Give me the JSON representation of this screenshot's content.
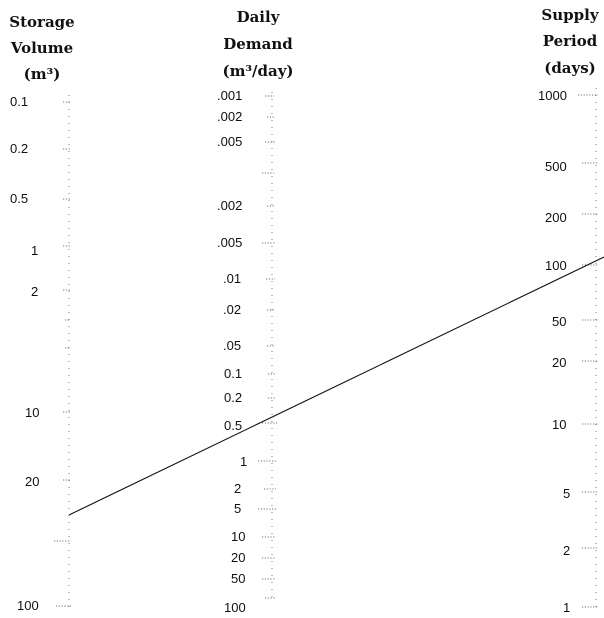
{
  "scales": {
    "storage": {
      "title": [
        "Storage",
        "Volume",
        "(m³)"
      ],
      "labels": [
        "0.1",
        "0.2",
        "0.5",
        "1",
        "2",
        "10",
        "20",
        "100"
      ]
    },
    "demand": {
      "title": [
        "Daily",
        "Demand",
        "(m³/day)"
      ],
      "labels": [
        ".001",
        ".002",
        ".005",
        ".002",
        ".005",
        ".01",
        ".02",
        ".05",
        "0.1",
        "0.2",
        "0.5",
        "1",
        "2",
        "5",
        "10",
        "20",
        "50",
        "100"
      ]
    },
    "supply": {
      "title": [
        "Supply",
        "Period",
        "(days)"
      ],
      "labels": [
        "1000",
        "500",
        "200",
        "100",
        "50",
        "20",
        "10",
        "5",
        "2",
        "1"
      ]
    }
  },
  "isopleth": {
    "storage_value": 30,
    "demand_value": 0.5,
    "supply_value": 100
  }
}
